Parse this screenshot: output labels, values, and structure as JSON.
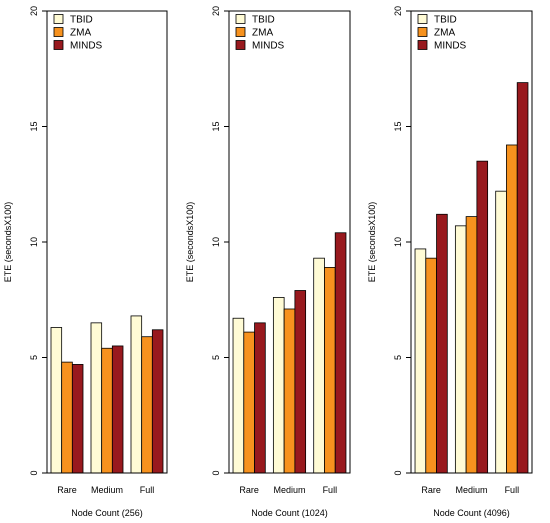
{
  "colors": {
    "TBID": "#FFFBD5",
    "ZMA": "#F7921E",
    "MINDS": "#98191E"
  },
  "chart_data": [
    {
      "type": "bar",
      "categories": [
        "Rare",
        "Medium",
        "Full"
      ],
      "series": [
        {
          "name": "TBID",
          "values": [
            6.3,
            6.5,
            6.8
          ]
        },
        {
          "name": "ZMA",
          "values": [
            4.8,
            5.4,
            5.9
          ]
        },
        {
          "name": "MINDS",
          "values": [
            4.7,
            5.5,
            6.2
          ]
        }
      ],
      "xlabel": "Node Count (256)",
      "ylabel": "ETE (secondsX100)",
      "ylim": [
        0,
        20
      ],
      "yticks": [
        "0",
        "5",
        "10",
        "15",
        "20"
      ],
      "legend": "top-left",
      "grid": false
    },
    {
      "type": "bar",
      "categories": [
        "Rare",
        "Medium",
        "Full"
      ],
      "series": [
        {
          "name": "TBID",
          "values": [
            6.7,
            7.6,
            9.3
          ]
        },
        {
          "name": "ZMA",
          "values": [
            6.1,
            7.1,
            8.9
          ]
        },
        {
          "name": "MINDS",
          "values": [
            6.5,
            7.9,
            10.4
          ]
        }
      ],
      "xlabel": "Node Count (1024)",
      "ylabel": "ETE (secondsX100)",
      "ylim": [
        0,
        20
      ],
      "yticks": [
        "0",
        "5",
        "10",
        "15",
        "20"
      ],
      "legend": "top-left",
      "grid": false
    },
    {
      "type": "bar",
      "categories": [
        "Rare",
        "Medium",
        "Full"
      ],
      "series": [
        {
          "name": "TBID",
          "values": [
            9.7,
            10.7,
            12.2
          ]
        },
        {
          "name": "ZMA",
          "values": [
            9.3,
            11.1,
            14.2
          ]
        },
        {
          "name": "MINDS",
          "values": [
            11.2,
            13.5,
            16.9
          ]
        }
      ],
      "xlabel": "Node Count (4096)",
      "ylabel": "ETE (secondsX100)",
      "ylim": [
        0,
        20
      ],
      "yticks": [
        "0",
        "5",
        "10",
        "15",
        "20"
      ],
      "legend": "top-left",
      "grid": false
    }
  ]
}
